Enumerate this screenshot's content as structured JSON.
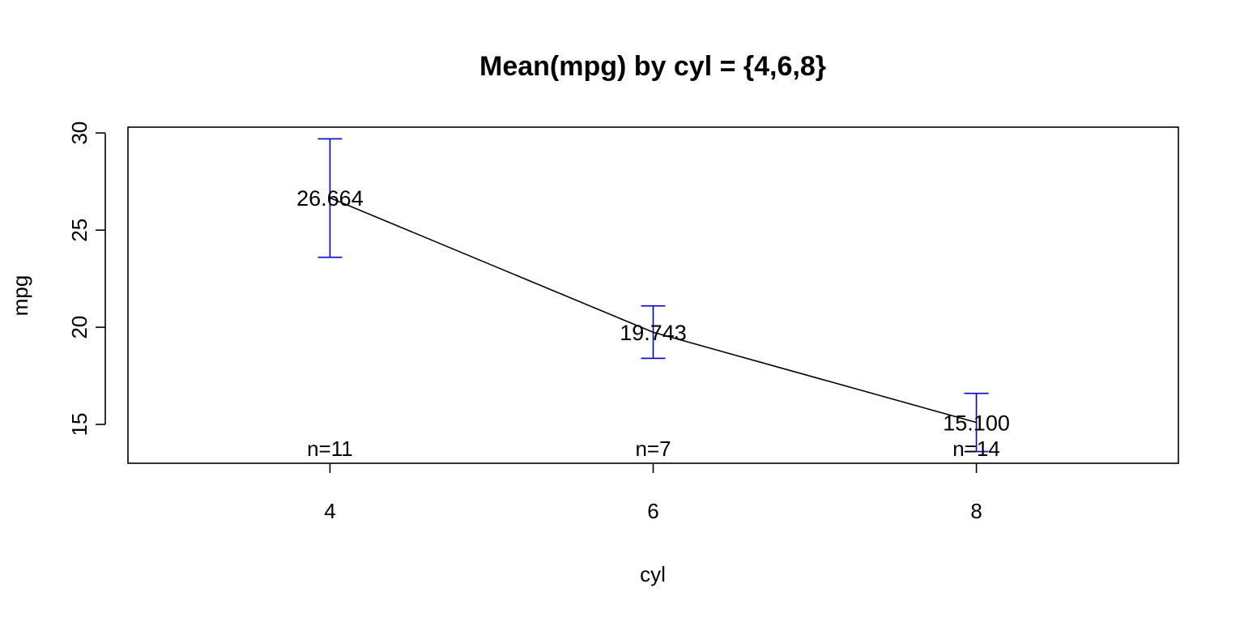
{
  "chart_data": {
    "type": "line",
    "title": "Mean(mpg) by cyl = {4,6,8}",
    "xlabel": "cyl",
    "ylabel": "mpg",
    "categories": [
      "4",
      "6",
      "8"
    ],
    "x": [
      4,
      6,
      8
    ],
    "series": [
      {
        "values": [
          26.664,
          19.743,
          15.1
        ],
        "value_labels": [
          "26.664",
          "19.743",
          "15.100"
        ],
        "error_low": [
          23.6,
          18.4,
          13.6
        ],
        "error_high": [
          29.7,
          21.1,
          16.6
        ],
        "n_labels": [
          "n=11",
          "n=7",
          "n=14"
        ]
      }
    ],
    "xlim": [
      2.75,
      9.25
    ],
    "ylim": [
      13.0,
      30.3
    ],
    "yticks": [
      15,
      20,
      25,
      30
    ],
    "ytick_labels": [
      "15",
      "20",
      "25",
      "30"
    ],
    "xtick_labels": [
      "4",
      "6",
      "8"
    ],
    "grid": false,
    "line_color": "#000000",
    "errorbar_color": "#0000cd"
  }
}
